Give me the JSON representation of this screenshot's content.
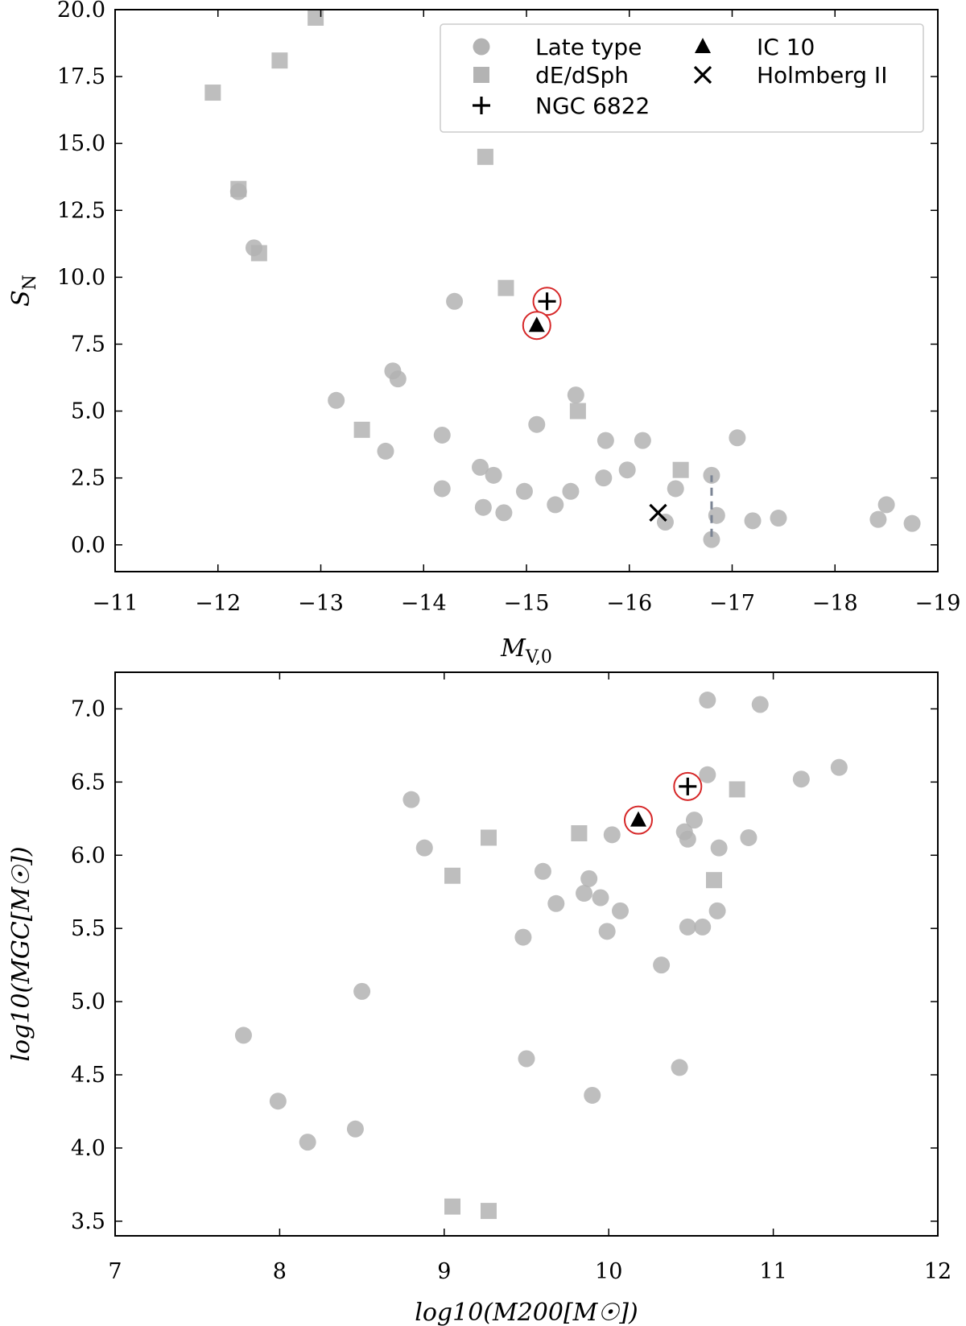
{
  "chart_data": [
    {
      "type": "scatter",
      "xlabel": "M_V,0",
      "ylabel": "S_N",
      "xlim": [
        -11,
        -19
      ],
      "ylim": [
        -1.0,
        20.0
      ],
      "xticks": [
        "−11",
        "−12",
        "−13",
        "−14",
        "−15",
        "−16",
        "−17",
        "−18",
        "−19"
      ],
      "yticks": [
        "0.0",
        "2.5",
        "5.0",
        "7.5",
        "10.0",
        "12.5",
        "15.0",
        "17.5",
        "20.0"
      ],
      "legend_position": "top-right",
      "legend": [
        "Late type",
        "dE/dSph",
        "NGC 6822",
        "IC 10",
        "Holmberg II"
      ],
      "series": [
        {
          "name": "Late type",
          "marker": "circle",
          "color": "#b3b3b3",
          "points": [
            [
              -12.2,
              13.2
            ],
            [
              -12.35,
              11.1
            ],
            [
              -13.15,
              5.4
            ],
            [
              -13.63,
              3.5
            ],
            [
              -13.7,
              6.5
            ],
            [
              -13.75,
              6.2
            ],
            [
              -14.18,
              4.1
            ],
            [
              -14.18,
              2.1
            ],
            [
              -14.3,
              9.1
            ],
            [
              -14.55,
              2.9
            ],
            [
              -14.58,
              1.4
            ],
            [
              -14.68,
              2.6
            ],
            [
              -14.78,
              1.2
            ],
            [
              -14.98,
              2.0
            ],
            [
              -15.1,
              4.5
            ],
            [
              -15.28,
              1.5
            ],
            [
              -15.43,
              2.0
            ],
            [
              -15.48,
              5.6
            ],
            [
              -15.75,
              2.5
            ],
            [
              -15.77,
              3.9
            ],
            [
              -15.98,
              2.8
            ],
            [
              -16.13,
              3.9
            ],
            [
              -16.35,
              0.85
            ],
            [
              -16.45,
              2.1
            ],
            [
              -16.8,
              2.6
            ],
            [
              -16.8,
              0.2
            ],
            [
              -16.85,
              1.1
            ],
            [
              -17.05,
              4.0
            ],
            [
              -17.2,
              0.9
            ],
            [
              -17.45,
              1.0
            ],
            [
              -18.42,
              0.95
            ],
            [
              -18.5,
              1.5
            ],
            [
              -18.75,
              0.8
            ]
          ]
        },
        {
          "name": "dE/dSph",
          "marker": "square",
          "color": "#b3b3b3",
          "points": [
            [
              -11.95,
              16.9
            ],
            [
              -12.2,
              13.3
            ],
            [
              -12.4,
              10.9
            ],
            [
              -12.6,
              18.1
            ],
            [
              -12.95,
              19.7
            ],
            [
              -13.4,
              4.3
            ],
            [
              -14.6,
              14.5
            ],
            [
              -14.8,
              9.6
            ],
            [
              -15.5,
              5.0
            ],
            [
              -16.5,
              2.8
            ]
          ]
        },
        {
          "name": "NGC 6822",
          "marker": "plus",
          "color": "#000000",
          "highlight_ring": "#d62728",
          "points": [
            [
              -15.2,
              9.1
            ]
          ]
        },
        {
          "name": "IC 10",
          "marker": "triangle",
          "color": "#000000",
          "highlight_ring": "#d62728",
          "points": [
            [
              -15.1,
              8.2
            ]
          ]
        },
        {
          "name": "Holmberg II",
          "marker": "x",
          "color": "#000000",
          "points": [
            [
              -16.28,
              1.2
            ]
          ]
        }
      ],
      "error_bar": {
        "x": -16.8,
        "y_low": 0.3,
        "y_high": 2.6,
        "color": "#7b8494",
        "style": "dashed"
      }
    },
    {
      "type": "scatter",
      "xlabel": "log10(M200[M☉])",
      "ylabel": "log10(MGC[M☉])",
      "xlim": [
        7,
        12
      ],
      "ylim": [
        3.4,
        7.25
      ],
      "xticks": [
        "7",
        "8",
        "9",
        "10",
        "11",
        "12"
      ],
      "yticks": [
        "3.5",
        "4.0",
        "4.5",
        "5.0",
        "5.5",
        "6.0",
        "6.5",
        "7.0"
      ],
      "series": [
        {
          "name": "Late type",
          "marker": "circle",
          "color": "#b3b3b3",
          "points": [
            [
              7.78,
              4.77
            ],
            [
              7.99,
              4.32
            ],
            [
              8.17,
              4.04
            ],
            [
              8.46,
              4.13
            ],
            [
              8.5,
              5.07
            ],
            [
              8.8,
              6.38
            ],
            [
              8.88,
              6.05
            ],
            [
              9.48,
              5.44
            ],
            [
              9.5,
              4.61
            ],
            [
              9.6,
              5.89
            ],
            [
              9.68,
              5.67
            ],
            [
              9.85,
              5.74
            ],
            [
              9.88,
              5.84
            ],
            [
              9.9,
              4.36
            ],
            [
              9.95,
              5.71
            ],
            [
              9.99,
              5.48
            ],
            [
              10.02,
              6.14
            ],
            [
              10.07,
              5.62
            ],
            [
              10.32,
              5.25
            ],
            [
              10.43,
              4.55
            ],
            [
              10.46,
              6.16
            ],
            [
              10.48,
              6.11
            ],
            [
              10.48,
              5.51
            ],
            [
              10.52,
              6.24
            ],
            [
              10.57,
              5.51
            ],
            [
              10.6,
              6.55
            ],
            [
              10.6,
              7.06
            ],
            [
              10.66,
              5.62
            ],
            [
              10.67,
              6.05
            ],
            [
              10.85,
              6.12
            ],
            [
              10.92,
              7.03
            ],
            [
              11.17,
              6.52
            ],
            [
              11.4,
              6.6
            ]
          ]
        },
        {
          "name": "dE/dSph",
          "marker": "square",
          "color": "#b3b3b3",
          "points": [
            [
              9.05,
              3.6
            ],
            [
              9.05,
              5.86
            ],
            [
              9.27,
              3.57
            ],
            [
              9.27,
              6.12
            ],
            [
              9.82,
              6.15
            ],
            [
              10.64,
              5.83
            ],
            [
              10.78,
              6.45
            ]
          ]
        },
        {
          "name": "NGC 6822",
          "marker": "plus",
          "color": "#000000",
          "highlight_ring": "#d62728",
          "points": [
            [
              10.48,
              6.47
            ]
          ]
        },
        {
          "name": "IC 10",
          "marker": "triangle",
          "color": "#000000",
          "highlight_ring": "#d62728",
          "points": [
            [
              10.18,
              6.24
            ]
          ]
        }
      ]
    }
  ]
}
